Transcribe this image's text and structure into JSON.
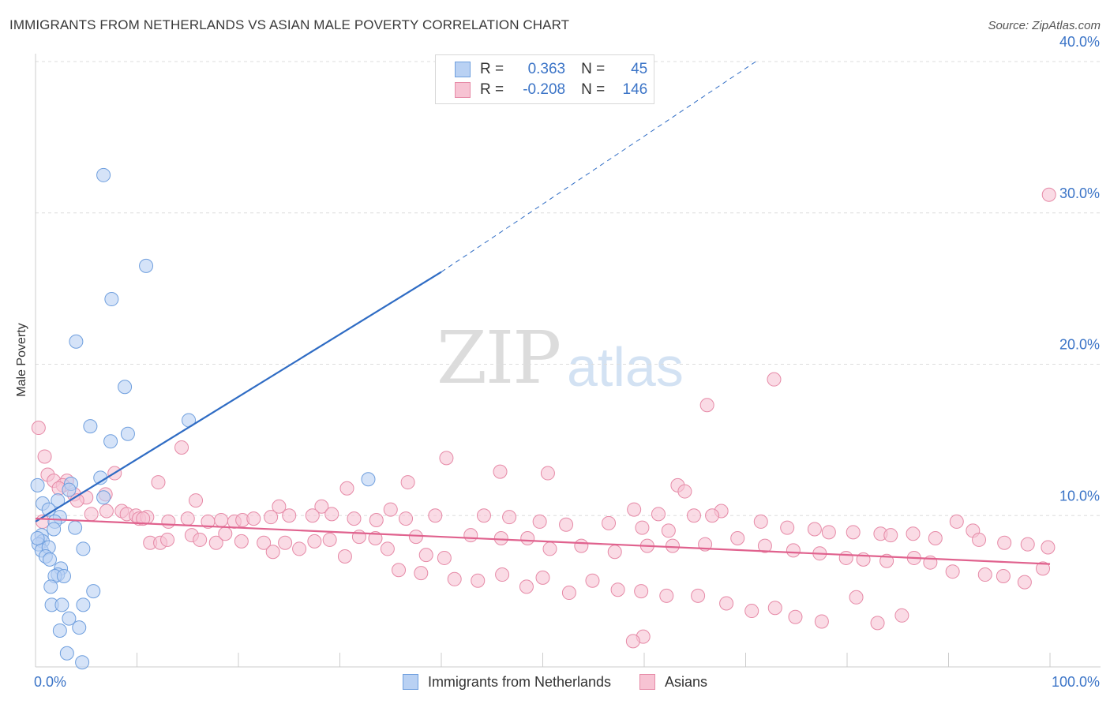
{
  "header": {
    "title": "IMMIGRANTS FROM NETHERLANDS VS ASIAN MALE POVERTY CORRELATION CHART",
    "source": "Source: ZipAtlas.com"
  },
  "watermark": {
    "zip": "ZIP",
    "atlas": "atlas"
  },
  "legend": {
    "rows": [
      {
        "r_label": "R =",
        "r_value": "0.363",
        "n_label": "N =",
        "n_value": "45"
      },
      {
        "r_label": "R =",
        "r_value": "-0.208",
        "n_label": "N =",
        "n_value": "146"
      }
    ]
  },
  "bottom_legend": {
    "series1": "Immigrants from Netherlands",
    "series2": "Asians"
  },
  "colors": {
    "blue_fill": "#b9d1f3",
    "blue_stroke": "#6f9fde",
    "blue_line": "#2f6cc4",
    "pink_fill": "#f7c3d3",
    "pink_stroke": "#e68aa7",
    "pink_line": "#e0628e",
    "tick_label": "#3b74c7"
  },
  "chart_data": {
    "type": "scatter",
    "title": "IMMIGRANTS FROM NETHERLANDS VS ASIAN MALE POVERTY CORRELATION CHART",
    "xlabel": "",
    "ylabel": "Male Poverty",
    "xlim": [
      0,
      100
    ],
    "ylim": [
      0,
      40
    ],
    "x_tick_labels": [
      "0.0%",
      "100.0%"
    ],
    "y_ticks": [
      10,
      20,
      30,
      40
    ],
    "y_tick_labels": [
      "10.0%",
      "20.0%",
      "30.0%",
      "40.0%"
    ],
    "grid": true,
    "legend_position": "top-center",
    "series": [
      {
        "name": "Immigrants from Netherlands",
        "color": "#6f9fde",
        "points": [
          [
            6.7,
            32.5
          ],
          [
            10.9,
            26.5
          ],
          [
            7.5,
            24.3
          ],
          [
            4.0,
            21.5
          ],
          [
            8.8,
            18.5
          ],
          [
            15.1,
            16.3
          ],
          [
            5.4,
            15.9
          ],
          [
            9.1,
            15.4
          ],
          [
            7.4,
            14.9
          ],
          [
            0.2,
            12.0
          ],
          [
            6.4,
            12.5
          ],
          [
            3.5,
            12.1
          ],
          [
            32.8,
            12.4
          ],
          [
            3.3,
            11.7
          ],
          [
            2.2,
            11.0
          ],
          [
            6.7,
            11.2
          ],
          [
            0.7,
            10.8
          ],
          [
            1.3,
            10.4
          ],
          [
            2.4,
            9.9
          ],
          [
            1.9,
            9.6
          ],
          [
            3.9,
            9.2
          ],
          [
            1.8,
            9.1
          ],
          [
            0.6,
            8.7
          ],
          [
            0.7,
            8.3
          ],
          [
            0.3,
            8.1
          ],
          [
            0.6,
            7.7
          ],
          [
            1.3,
            7.9
          ],
          [
            4.7,
            7.8
          ],
          [
            1.0,
            7.3
          ],
          [
            1.4,
            7.1
          ],
          [
            2.5,
            6.5
          ],
          [
            2.2,
            6.1
          ],
          [
            1.9,
            6.0
          ],
          [
            2.8,
            6.0
          ],
          [
            5.7,
            5.0
          ],
          [
            1.5,
            5.3
          ],
          [
            1.6,
            4.1
          ],
          [
            2.6,
            4.1
          ],
          [
            4.7,
            4.1
          ],
          [
            3.3,
            3.2
          ],
          [
            4.3,
            2.6
          ],
          [
            2.4,
            2.4
          ],
          [
            3.1,
            0.9
          ],
          [
            4.6,
            0.3
          ],
          [
            0.2,
            8.5
          ]
        ],
        "trend": {
          "x": [
            0,
            40
          ],
          "y": [
            9.6,
            26.1
          ],
          "dashed_extension_to": [
            71,
            40
          ]
        }
      },
      {
        "name": "Asians",
        "color": "#e68aa7",
        "points": [
          [
            0.3,
            15.8
          ],
          [
            99.9,
            31.2
          ],
          [
            72.8,
            19.0
          ],
          [
            66.2,
            17.3
          ],
          [
            0.9,
            13.9
          ],
          [
            14.4,
            14.5
          ],
          [
            40.5,
            13.8
          ],
          [
            45.8,
            12.9
          ],
          [
            50.5,
            12.8
          ],
          [
            1.2,
            12.7
          ],
          [
            7.8,
            12.8
          ],
          [
            3.1,
            12.3
          ],
          [
            1.8,
            12.3
          ],
          [
            2.7,
            12.0
          ],
          [
            12.1,
            12.2
          ],
          [
            2.3,
            11.8
          ],
          [
            30.7,
            11.8
          ],
          [
            36.7,
            12.2
          ],
          [
            63.3,
            12.0
          ],
          [
            3.8,
            11.4
          ],
          [
            5.0,
            11.2
          ],
          [
            4.1,
            11.0
          ],
          [
            6.9,
            11.4
          ],
          [
            64.0,
            11.6
          ],
          [
            15.8,
            11.0
          ],
          [
            24.0,
            10.6
          ],
          [
            28.2,
            10.6
          ],
          [
            35.0,
            10.4
          ],
          [
            59.0,
            10.4
          ],
          [
            61.4,
            10.1
          ],
          [
            67.6,
            10.3
          ],
          [
            7.0,
            10.3
          ],
          [
            8.5,
            10.3
          ],
          [
            9.0,
            10.1
          ],
          [
            5.5,
            10.1
          ],
          [
            9.9,
            10.0
          ],
          [
            10.2,
            9.8
          ],
          [
            11.0,
            9.9
          ],
          [
            10.6,
            9.8
          ],
          [
            13.1,
            9.6
          ],
          [
            15.0,
            9.8
          ],
          [
            17.0,
            9.6
          ],
          [
            18.3,
            9.7
          ],
          [
            19.6,
            9.6
          ],
          [
            20.4,
            9.7
          ],
          [
            21.5,
            9.8
          ],
          [
            23.2,
            9.9
          ],
          [
            25.0,
            10.0
          ],
          [
            27.3,
            10.0
          ],
          [
            29.2,
            10.1
          ],
          [
            31.4,
            9.8
          ],
          [
            33.6,
            9.7
          ],
          [
            36.5,
            9.8
          ],
          [
            39.4,
            10.0
          ],
          [
            44.2,
            10.0
          ],
          [
            46.7,
            9.9
          ],
          [
            49.7,
            9.6
          ],
          [
            52.3,
            9.4
          ],
          [
            56.5,
            9.5
          ],
          [
            59.8,
            9.2
          ],
          [
            62.4,
            9.0
          ],
          [
            64.9,
            10.0
          ],
          [
            66.7,
            10.0
          ],
          [
            71.5,
            9.6
          ],
          [
            74.1,
            9.2
          ],
          [
            76.8,
            9.1
          ],
          [
            78.2,
            8.9
          ],
          [
            80.6,
            8.9
          ],
          [
            83.3,
            8.8
          ],
          [
            84.3,
            8.7
          ],
          [
            86.5,
            8.8
          ],
          [
            88.7,
            8.5
          ],
          [
            90.8,
            9.6
          ],
          [
            92.4,
            9.0
          ],
          [
            93.0,
            8.4
          ],
          [
            95.5,
            8.2
          ],
          [
            97.8,
            8.1
          ],
          [
            99.8,
            7.9
          ],
          [
            11.3,
            8.2
          ],
          [
            12.3,
            8.2
          ],
          [
            13.0,
            8.4
          ],
          [
            15.4,
            8.7
          ],
          [
            16.2,
            8.4
          ],
          [
            17.8,
            8.2
          ],
          [
            18.7,
            8.8
          ],
          [
            20.3,
            8.3
          ],
          [
            22.5,
            8.2
          ],
          [
            23.4,
            7.6
          ],
          [
            24.6,
            8.2
          ],
          [
            26.0,
            7.8
          ],
          [
            27.5,
            8.3
          ],
          [
            29.0,
            8.4
          ],
          [
            30.5,
            7.3
          ],
          [
            31.9,
            8.6
          ],
          [
            33.5,
            8.5
          ],
          [
            34.7,
            7.8
          ],
          [
            37.5,
            8.6
          ],
          [
            38.5,
            7.4
          ],
          [
            40.3,
            7.2
          ],
          [
            42.9,
            8.7
          ],
          [
            45.9,
            8.5
          ],
          [
            48.5,
            8.5
          ],
          [
            50.7,
            7.8
          ],
          [
            53.8,
            8.0
          ],
          [
            57.1,
            7.6
          ],
          [
            60.3,
            8.0
          ],
          [
            62.8,
            8.0
          ],
          [
            66.0,
            8.1
          ],
          [
            69.2,
            8.5
          ],
          [
            71.9,
            8.0
          ],
          [
            74.7,
            7.7
          ],
          [
            77.3,
            7.5
          ],
          [
            79.9,
            7.2
          ],
          [
            81.6,
            7.1
          ],
          [
            83.9,
            7.0
          ],
          [
            86.6,
            7.2
          ],
          [
            88.2,
            6.9
          ],
          [
            90.4,
            6.3
          ],
          [
            93.6,
            6.1
          ],
          [
            95.4,
            6.0
          ],
          [
            97.5,
            5.6
          ],
          [
            99.3,
            6.5
          ],
          [
            35.8,
            6.4
          ],
          [
            38.0,
            6.2
          ],
          [
            41.3,
            5.8
          ],
          [
            43.6,
            5.7
          ],
          [
            46.0,
            6.1
          ],
          [
            48.4,
            5.3
          ],
          [
            50.0,
            5.9
          ],
          [
            52.6,
            4.9
          ],
          [
            54.9,
            5.7
          ],
          [
            57.4,
            5.1
          ],
          [
            59.7,
            5.0
          ],
          [
            62.2,
            4.7
          ],
          [
            65.3,
            4.7
          ],
          [
            68.1,
            4.2
          ],
          [
            70.6,
            3.7
          ],
          [
            72.9,
            3.9
          ],
          [
            74.9,
            3.3
          ],
          [
            77.5,
            3.0
          ],
          [
            80.9,
            4.6
          ],
          [
            83.0,
            2.9
          ],
          [
            85.4,
            3.4
          ],
          [
            59.9,
            2.0
          ],
          [
            58.9,
            1.7
          ],
          [
            0.7,
            9.6
          ]
        ],
        "trend": {
          "x": [
            0,
            100
          ],
          "y": [
            9.8,
            6.8
          ]
        }
      }
    ]
  }
}
